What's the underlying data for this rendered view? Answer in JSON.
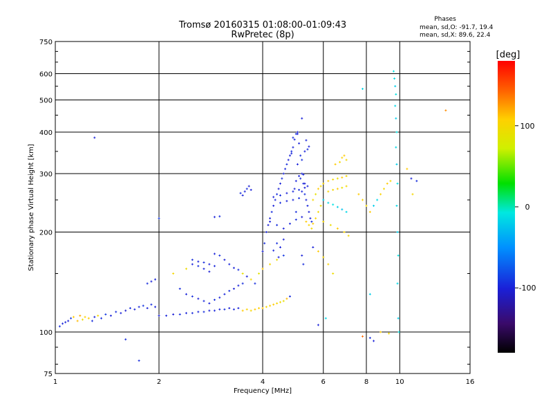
{
  "header": {
    "title_line1": "Tromsø 20160315 01:08:00-01:09:43",
    "title_line2": "RwPretec (8p)"
  },
  "stats": {
    "heading": "Phases",
    "line_o": "mean, sd,O: -91.7, 19.4",
    "line_x": "mean, sd,X: 89.6, 22.4"
  },
  "colorbar": {
    "unit": "[deg]",
    "tick_labels": [
      "100",
      "0",
      "-100"
    ],
    "tick_values": [
      100,
      0,
      -100
    ],
    "range": [
      -180,
      180
    ]
  },
  "chart_data": {
    "type": "scatter",
    "xlabel": "Frequency [MHz]",
    "ylabel": "Stationary phase Virtual Height [km]",
    "xscale": "log",
    "yscale": "log",
    "xlim": [
      1,
      16
    ],
    "ylim": [
      75,
      750
    ],
    "x_ticks": [
      1,
      2,
      4,
      6,
      8,
      10,
      16
    ],
    "x_tick_labels": [
      "1",
      "2",
      "4",
      "6",
      "8",
      "10",
      "16"
    ],
    "y_ticks": [
      75,
      100,
      200,
      300,
      400,
      500,
      600,
      750
    ],
    "y_tick_labels": [
      "75",
      "100",
      "200",
      "300",
      "400",
      "500",
      "600",
      "750"
    ],
    "grid": true,
    "color_value": "phase (deg)",
    "points": [
      [
        1.03,
        104,
        -95
      ],
      [
        1.05,
        106,
        -100
      ],
      [
        1.07,
        107,
        -98
      ],
      [
        1.09,
        108,
        -102
      ],
      [
        1.11,
        110,
        -90
      ],
      [
        1.13,
        111,
        110
      ],
      [
        1.16,
        108,
        115
      ],
      [
        1.18,
        112,
        120
      ],
      [
        1.2,
        109,
        95
      ],
      [
        1.22,
        111,
        105
      ],
      [
        1.25,
        110,
        110
      ],
      [
        1.28,
        108,
        -95
      ],
      [
        1.3,
        111,
        -100
      ],
      [
        1.33,
        112,
        100
      ],
      [
        1.36,
        110,
        -95
      ],
      [
        1.4,
        113,
        -90
      ],
      [
        1.45,
        112,
        -100
      ],
      [
        1.5,
        115,
        -95
      ],
      [
        1.55,
        114,
        -100
      ],
      [
        1.6,
        116,
        -105
      ],
      [
        1.65,
        118,
        -95
      ],
      [
        1.7,
        117,
        -100
      ],
      [
        1.75,
        119,
        -98
      ],
      [
        1.8,
        120,
        -92
      ],
      [
        1.85,
        118,
        -100
      ],
      [
        1.9,
        121,
        -95
      ],
      [
        1.95,
        119,
        -100
      ],
      [
        2.0,
        112,
        -100
      ],
      [
        2.1,
        112,
        -98
      ],
      [
        2.2,
        113,
        -102
      ],
      [
        2.3,
        113,
        -95
      ],
      [
        2.4,
        114,
        -100
      ],
      [
        2.5,
        114,
        -97
      ],
      [
        2.6,
        115,
        -100
      ],
      [
        2.7,
        115,
        -95
      ],
      [
        2.8,
        116,
        -102
      ],
      [
        2.9,
        116,
        -98
      ],
      [
        3.0,
        117,
        -100
      ],
      [
        3.1,
        117,
        -95
      ],
      [
        3.2,
        118,
        -102
      ],
      [
        3.3,
        117,
        -98
      ],
      [
        3.4,
        118,
        -100
      ],
      [
        3.5,
        116,
        110
      ],
      [
        3.6,
        117,
        105
      ],
      [
        3.7,
        116,
        100
      ],
      [
        3.8,
        117,
        110
      ],
      [
        3.9,
        118,
        108
      ],
      [
        4.0,
        118,
        112
      ],
      [
        4.1,
        119,
        100
      ],
      [
        4.2,
        120,
        105
      ],
      [
        4.3,
        121,
        110
      ],
      [
        4.4,
        122,
        100
      ],
      [
        4.5,
        123,
        95
      ],
      [
        4.6,
        124,
        90
      ],
      [
        4.7,
        126,
        115
      ],
      [
        4.8,
        128,
        -95
      ],
      [
        2.9,
        172,
        -100
      ],
      [
        3.0,
        170,
        -95
      ],
      [
        3.1,
        165,
        -102
      ],
      [
        3.2,
        160,
        -98
      ],
      [
        3.3,
        156,
        -100
      ],
      [
        3.4,
        154,
        -95
      ],
      [
        3.5,
        150,
        90
      ],
      [
        3.6,
        147,
        -100
      ],
      [
        3.7,
        144,
        100
      ],
      [
        3.8,
        140,
        -95
      ],
      [
        3.9,
        150,
        85
      ],
      [
        4.0,
        155,
        110
      ],
      [
        4.2,
        160,
        100
      ],
      [
        4.4,
        165,
        95
      ],
      [
        4.6,
        170,
        -90
      ],
      [
        2.2,
        150,
        100
      ],
      [
        2.4,
        155,
        95
      ],
      [
        2.5,
        160,
        -100
      ],
      [
        2.6,
        158,
        -95
      ],
      [
        2.7,
        155,
        -98
      ],
      [
        2.8,
        152,
        -102
      ],
      [
        2.5,
        165,
        -95
      ],
      [
        2.6,
        163,
        -100
      ],
      [
        2.7,
        162,
        -95
      ],
      [
        2.8,
        160,
        -100
      ],
      [
        2.9,
        158,
        -98
      ],
      [
        1.85,
        140,
        -95
      ],
      [
        1.9,
        142,
        -100
      ],
      [
        1.95,
        144,
        -98
      ],
      [
        2.0,
        220,
        -90
      ],
      [
        2.3,
        135,
        -95
      ],
      [
        2.4,
        130,
        -100
      ],
      [
        2.5,
        128,
        -95
      ],
      [
        2.6,
        126,
        -102
      ],
      [
        2.7,
        124,
        -98
      ],
      [
        2.8,
        122,
        -100
      ],
      [
        2.9,
        125,
        -95
      ],
      [
        3.0,
        127,
        -100
      ],
      [
        3.1,
        130,
        -98
      ],
      [
        3.2,
        133,
        -95
      ],
      [
        3.3,
        135,
        -102
      ],
      [
        3.4,
        138,
        -100
      ],
      [
        3.5,
        140,
        -95
      ],
      [
        2.9,
        222,
        -100
      ],
      [
        3.0,
        223,
        -95
      ],
      [
        3.5,
        258,
        -100
      ],
      [
        3.55,
        265,
        -98
      ],
      [
        3.6,
        270,
        -95
      ],
      [
        3.65,
        275,
        -102
      ],
      [
        3.7,
        268,
        -100
      ],
      [
        3.45,
        262,
        -95
      ],
      [
        1.3,
        385,
        -100
      ],
      [
        1.6,
        95,
        -95
      ],
      [
        1.75,
        82,
        -95
      ],
      [
        4.0,
        175,
        -100
      ],
      [
        4.05,
        185,
        -95
      ],
      [
        4.1,
        200,
        -98
      ],
      [
        4.15,
        210,
        -102
      ],
      [
        4.2,
        220,
        -100
      ],
      [
        4.25,
        230,
        -95
      ],
      [
        4.3,
        240,
        -100
      ],
      [
        4.35,
        250,
        -98
      ],
      [
        4.4,
        260,
        -95
      ],
      [
        4.45,
        270,
        -102
      ],
      [
        4.5,
        280,
        -100
      ],
      [
        4.55,
        290,
        -95
      ],
      [
        4.6,
        300,
        -100
      ],
      [
        4.65,
        310,
        -98
      ],
      [
        4.7,
        320,
        -95
      ],
      [
        4.75,
        330,
        -102
      ],
      [
        4.8,
        340,
        -100
      ],
      [
        4.85,
        350,
        -95
      ],
      [
        4.9,
        360,
        -100
      ],
      [
        4.95,
        380,
        -98
      ],
      [
        5.0,
        395,
        -95
      ],
      [
        5.05,
        400,
        -102
      ],
      [
        5.1,
        370,
        -100
      ],
      [
        5.15,
        340,
        -95
      ],
      [
        5.2,
        300,
        -100
      ],
      [
        5.25,
        280,
        -98
      ],
      [
        5.3,
        260,
        -95
      ],
      [
        5.35,
        250,
        -100
      ],
      [
        5.4,
        240,
        -98
      ],
      [
        5.45,
        230,
        -102
      ],
      [
        5.5,
        220,
        -100
      ],
      [
        5.55,
        215,
        -95
      ],
      [
        4.2,
        215,
        -100
      ],
      [
        4.4,
        210,
        -95
      ],
      [
        4.6,
        205,
        -100
      ],
      [
        4.8,
        212,
        -98
      ],
      [
        5.0,
        218,
        -95
      ],
      [
        5.2,
        222,
        -102
      ],
      [
        4.3,
        255,
        -100
      ],
      [
        4.5,
        258,
        -95
      ],
      [
        4.7,
        262,
        -100
      ],
      [
        4.9,
        265,
        -98
      ],
      [
        5.1,
        268,
        -95
      ],
      [
        5.3,
        272,
        -102
      ],
      [
        5.4,
        275,
        -100
      ],
      [
        4.5,
        245,
        -95
      ],
      [
        4.7,
        248,
        -100
      ],
      [
        4.9,
        250,
        -98
      ],
      [
        5.1,
        253,
        -95
      ],
      [
        5.0,
        285,
        -100
      ],
      [
        5.15,
        290,
        -95
      ],
      [
        5.25,
        298,
        -98
      ],
      [
        5.05,
        320,
        -100
      ],
      [
        5.2,
        330,
        -95
      ],
      [
        4.85,
        345,
        -98
      ],
      [
        5.3,
        350,
        -100
      ],
      [
        5.4,
        355,
        -95
      ],
      [
        5.45,
        362,
        -102
      ],
      [
        5.2,
        440,
        -100
      ],
      [
        4.9,
        385,
        -95
      ],
      [
        5.05,
        395,
        -100
      ],
      [
        5.35,
        378,
        -98
      ],
      [
        4.6,
        190,
        -100
      ],
      [
        4.4,
        185,
        -95
      ],
      [
        4.3,
        176,
        -98
      ],
      [
        4.5,
        180,
        -100
      ],
      [
        4.45,
        168,
        -102
      ],
      [
        5.2,
        170,
        -100
      ],
      [
        5.25,
        160,
        -95
      ],
      [
        5.35,
        215,
        110
      ],
      [
        5.45,
        210,
        105
      ],
      [
        5.55,
        205,
        100
      ],
      [
        5.6,
        212,
        110
      ],
      [
        5.7,
        220,
        105
      ],
      [
        5.8,
        230,
        100
      ],
      [
        5.9,
        240,
        95
      ],
      [
        5.6,
        250,
        100
      ],
      [
        5.7,
        260,
        90
      ],
      [
        5.8,
        270,
        110
      ],
      [
        5.9,
        275,
        100
      ],
      [
        6.0,
        280,
        105
      ],
      [
        6.2,
        285,
        110
      ],
      [
        6.4,
        288,
        100
      ],
      [
        6.6,
        290,
        95
      ],
      [
        6.8,
        292,
        110
      ],
      [
        7.0,
        295,
        100
      ],
      [
        6.2,
        265,
        105
      ],
      [
        6.4,
        268,
        100
      ],
      [
        6.6,
        270,
        110
      ],
      [
        6.8,
        272,
        90
      ],
      [
        7.0,
        275,
        100
      ],
      [
        6.5,
        320,
        110
      ],
      [
        6.7,
        325,
        100
      ],
      [
        6.8,
        335,
        105
      ],
      [
        6.9,
        340,
        110
      ],
      [
        7.0,
        330,
        100
      ],
      [
        6.0,
        250,
        -20
      ],
      [
        6.2,
        245,
        -15
      ],
      [
        6.4,
        242,
        -10
      ],
      [
        6.6,
        238,
        -20
      ],
      [
        6.8,
        234,
        -25
      ],
      [
        7.0,
        230,
        -15
      ],
      [
        6.0,
        215,
        100
      ],
      [
        6.3,
        210,
        95
      ],
      [
        6.6,
        205,
        110
      ],
      [
        6.9,
        200,
        105
      ],
      [
        7.1,
        195,
        100
      ],
      [
        5.6,
        180,
        -100
      ],
      [
        5.8,
        175,
        110
      ],
      [
        6.0,
        168,
        100
      ],
      [
        6.2,
        160,
        105
      ],
      [
        6.4,
        150,
        95
      ],
      [
        7.8,
        540,
        -15
      ],
      [
        7.6,
        260,
        110
      ],
      [
        7.8,
        250,
        105
      ],
      [
        8.0,
        240,
        100
      ],
      [
        8.2,
        230,
        110
      ],
      [
        8.4,
        240,
        -20
      ],
      [
        8.6,
        250,
        -15
      ],
      [
        8.8,
        260,
        105
      ],
      [
        9.0,
        270,
        100
      ],
      [
        9.2,
        280,
        110
      ],
      [
        9.4,
        285,
        100
      ],
      [
        9.6,
        610,
        -10
      ],
      [
        9.65,
        580,
        -15
      ],
      [
        9.7,
        550,
        -20
      ],
      [
        9.75,
        520,
        -10
      ],
      [
        9.7,
        480,
        -15
      ],
      [
        9.75,
        440,
        -20
      ],
      [
        9.8,
        400,
        -10
      ],
      [
        9.75,
        360,
        -15
      ],
      [
        9.8,
        320,
        -20
      ],
      [
        9.85,
        280,
        -10
      ],
      [
        9.8,
        240,
        -15
      ],
      [
        9.85,
        200,
        -20
      ],
      [
        9.9,
        170,
        -10
      ],
      [
        9.85,
        140,
        -15
      ],
      [
        9.9,
        110,
        -20
      ],
      [
        9.95,
        100,
        -10
      ],
      [
        8.2,
        96,
        -95
      ],
      [
        8.4,
        94,
        -100
      ],
      [
        7.8,
        97,
        140
      ],
      [
        8.8,
        100,
        110
      ],
      [
        9.3,
        99,
        100
      ],
      [
        10.5,
        310,
        110
      ],
      [
        10.8,
        290,
        -100
      ],
      [
        11.2,
        285,
        -95
      ],
      [
        10.9,
        260,
        100
      ],
      [
        13.6,
        465,
        130
      ],
      [
        5.8,
        105,
        -100
      ],
      [
        6.1,
        110,
        -15
      ],
      [
        8.2,
        130,
        -20
      ],
      [
        5.1,
        295,
        -100
      ],
      [
        5.2,
        265,
        -98
      ],
      [
        5.0,
        230,
        -95
      ],
      [
        5.3,
        280,
        -102
      ],
      [
        4.95,
        270,
        -100
      ]
    ]
  }
}
